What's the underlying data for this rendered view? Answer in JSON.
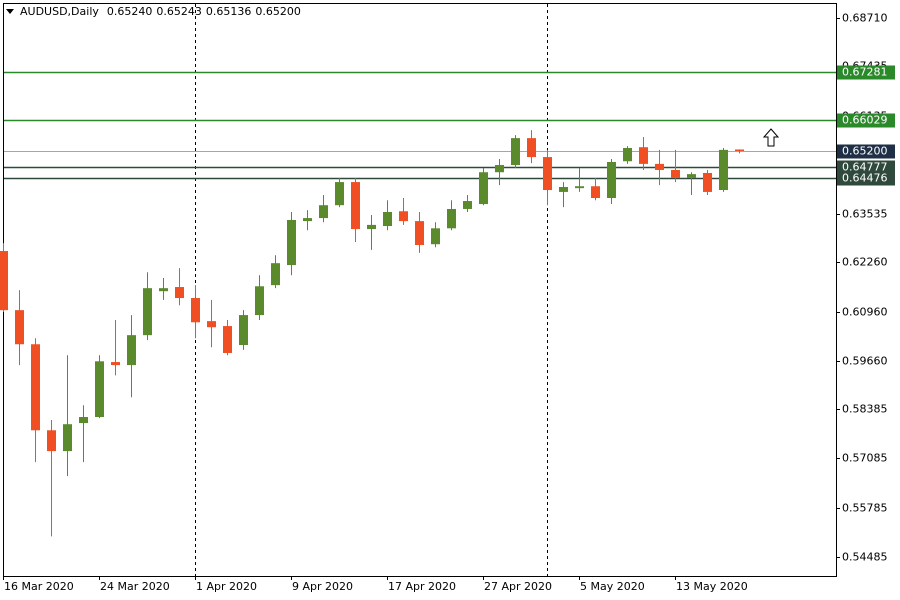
{
  "chart_data": {
    "type": "candlestick",
    "title": "AUDUSD,Daily",
    "title_ohlc": [
      "0.65240",
      "0.65243",
      "0.65136",
      "0.65200"
    ],
    "categories": [
      "16 Mar 2020",
      null,
      null,
      null,
      null,
      null,
      "24 Mar 2020",
      null,
      null,
      null,
      null,
      null,
      "1 Apr 2020",
      null,
      null,
      null,
      null,
      null,
      "9 Apr 2020",
      null,
      null,
      null,
      null,
      null,
      "17 Apr 2020",
      null,
      null,
      null,
      null,
      null,
      "27 Apr 2020",
      null,
      null,
      null,
      null,
      null,
      "5 May 2020",
      null,
      null,
      null,
      null,
      null,
      "13 May 2020",
      null,
      null,
      null,
      null
    ],
    "open": [
      0.6256,
      0.61,
      0.601,
      0.5783,
      0.5728,
      0.5802,
      0.5818,
      0.5963,
      0.5955,
      0.6034,
      0.615,
      0.6161,
      0.6132,
      0.6071,
      0.6058,
      0.6008,
      0.6087,
      0.6166,
      0.6219,
      0.6335,
      0.6343,
      0.6377,
      0.6438,
      0.6314,
      0.6322,
      0.6361,
      0.6335,
      0.6274,
      0.6316,
      0.6367,
      0.638,
      0.6464,
      0.6483,
      0.6554,
      0.6504,
      0.6412,
      0.6422,
      0.6427,
      0.6396,
      0.6493,
      0.653,
      0.6486,
      0.647,
      0.6449,
      0.6462,
      0.6417,
      0.6524
    ],
    "high": [
      0.6277,
      0.6153,
      0.6026,
      0.581,
      0.5981,
      0.5849,
      0.5981,
      0.6074,
      0.6087,
      0.62,
      0.6185,
      0.6211,
      0.6166,
      0.6127,
      0.6074,
      0.61,
      0.6192,
      0.6245,
      0.6359,
      0.6364,
      0.6404,
      0.6449,
      0.6449,
      0.6351,
      0.639,
      0.6396,
      0.6359,
      0.6332,
      0.639,
      0.6404,
      0.6475,
      0.6499,
      0.6562,
      0.6575,
      0.6523,
      0.6438,
      0.6475,
      0.6449,
      0.6499,
      0.6533,
      0.6557,
      0.6523,
      0.6523,
      0.6464,
      0.647,
      0.6528,
      0.65243
    ],
    "low": [
      0.6095,
      0.5955,
      0.5699,
      0.5503,
      0.5662,
      0.5699,
      0.5815,
      0.5928,
      0.587,
      0.6021,
      0.6127,
      0.6113,
      0.6026,
      0.6002,
      0.5981,
      0.5995,
      0.6074,
      0.6158,
      0.6192,
      0.6311,
      0.6332,
      0.6372,
      0.628,
      0.6259,
      0.6311,
      0.6325,
      0.6251,
      0.6266,
      0.6311,
      0.6359,
      0.6377,
      0.643,
      0.6475,
      0.6488,
      0.6377,
      0.6372,
      0.6412,
      0.639,
      0.638,
      0.6486,
      0.647,
      0.643,
      0.6438,
      0.6404,
      0.6404,
      0.6412,
      0.65136
    ],
    "close": [
      0.61,
      0.601,
      0.5783,
      0.5728,
      0.5799,
      0.5818,
      0.5965,
      0.5955,
      0.6034,
      0.6158,
      0.6158,
      0.6132,
      0.6068,
      0.6055,
      0.5987,
      0.6087,
      0.6163,
      0.6224,
      0.6338,
      0.6343,
      0.6377,
      0.6438,
      0.6314,
      0.6325,
      0.6359,
      0.6335,
      0.6272,
      0.6316,
      0.6367,
      0.6388,
      0.6464,
      0.6483,
      0.6554,
      0.6504,
      0.6417,
      0.6425,
      0.6427,
      0.6396,
      0.6491,
      0.6528,
      0.6486,
      0.647,
      0.6449,
      0.6459,
      0.6412,
      0.6523,
      0.652
    ],
    "up_color": "#5b8a2d",
    "down_color": "#f04e23",
    "ylim": [
      0.53984,
      0.69106
    ],
    "yticks": [
      {
        "value": 0.6871,
        "label": "0.68710"
      },
      {
        "value": 0.67435,
        "label": "0.67435"
      },
      {
        "value": 0.66135,
        "label": "0.66135"
      },
      {
        "value": 0.64835,
        "label": "0.64835"
      },
      {
        "value": 0.63535,
        "label": "0.63535"
      },
      {
        "value": 0.6226,
        "label": "0.62260"
      },
      {
        "value": 0.6096,
        "label": "0.60960"
      },
      {
        "value": 0.5966,
        "label": "0.59660"
      },
      0.58385,
      0.57085,
      0.55785,
      0.54485
    ],
    "levels": [
      {
        "value": 0.67281,
        "label": "0.67281",
        "color": "#2a8a2a"
      },
      {
        "value": 0.66029,
        "label": "0.66029",
        "color": "#2a8a2a"
      },
      {
        "value": 0.652,
        "label": "0.65200",
        "color": "#1f2f46"
      },
      {
        "value": 0.64777,
        "label": "0.64777",
        "color": "#2f4a3c"
      },
      {
        "value": 0.64476,
        "label": "0.64476",
        "color": "#2f4a3c"
      }
    ],
    "grid": false
  }
}
